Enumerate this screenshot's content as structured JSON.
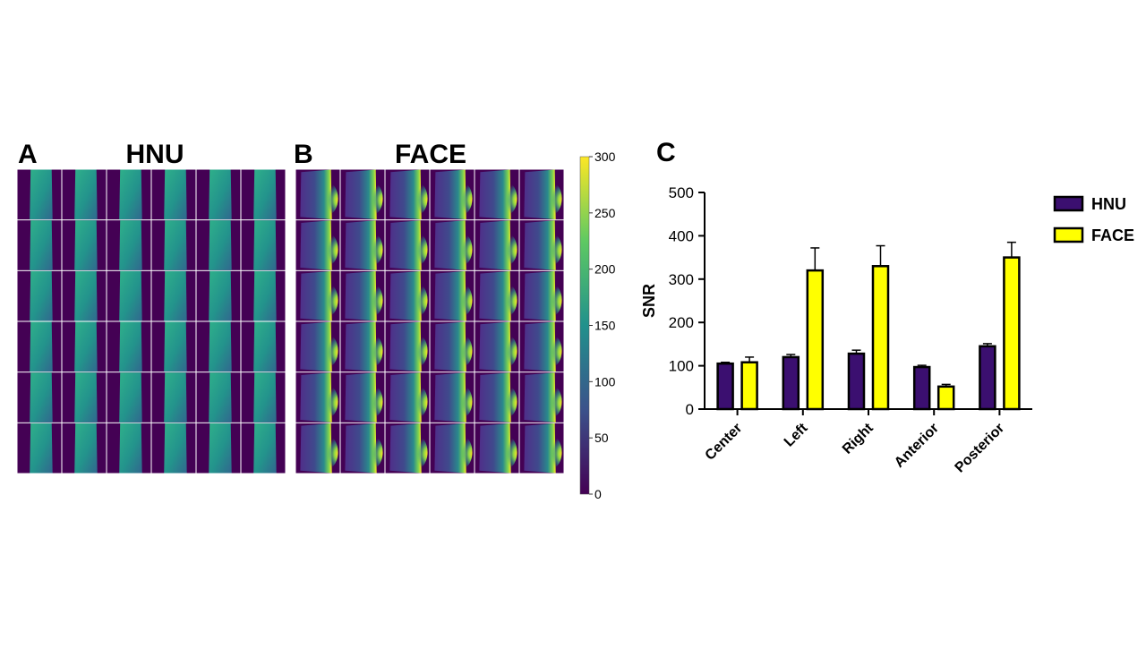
{
  "panel_a": {
    "letter": "A",
    "title": "HNU",
    "rows": 6,
    "cols": 6
  },
  "panel_b": {
    "letter": "B",
    "title": "FACE",
    "rows": 6,
    "cols": 6
  },
  "colorbar": {
    "ticks": [
      "0",
      "50",
      "100",
      "150",
      "200",
      "250",
      "300"
    ],
    "min": 0,
    "max": 300,
    "colormap": [
      "#440154",
      "#3b528b",
      "#21918c",
      "#5ec962",
      "#fde725"
    ]
  },
  "chart_data": {
    "type": "bar",
    "panel_letter": "C",
    "ylabel": "SNR",
    "ylim": [
      0,
      500
    ],
    "yticks": [
      0,
      100,
      200,
      300,
      400,
      500
    ],
    "ytick_labels": [
      "0",
      "100",
      "200",
      "300",
      "400",
      "500"
    ],
    "categories": [
      "Center",
      "Left",
      "Right",
      "Anterior",
      "Posterior"
    ],
    "series": [
      {
        "name": "HNU",
        "color": "#3b0f70",
        "values": [
          105,
          120,
          128,
          97,
          145
        ],
        "errors": [
          3,
          6,
          8,
          4,
          6
        ]
      },
      {
        "name": "FACE",
        "color": "#ffff00",
        "values": [
          108,
          320,
          330,
          52,
          350
        ],
        "errors": [
          12,
          52,
          47,
          5,
          35
        ]
      }
    ],
    "legend_position": "right"
  }
}
